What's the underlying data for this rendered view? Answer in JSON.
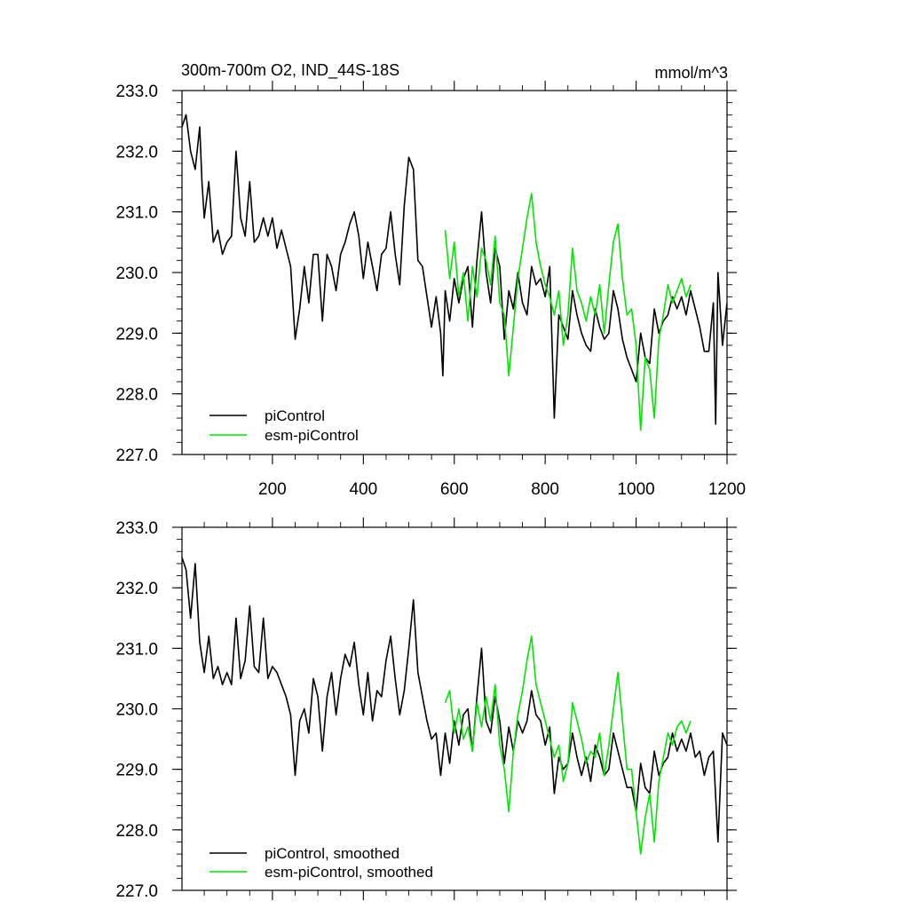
{
  "figure": {
    "title": "300m-700m O2, IND_44S-18S",
    "units": "mmol/m^3"
  },
  "chart_data": [
    {
      "type": "line",
      "panel": "top",
      "title": "300m-700m O2, IND_44S-18S",
      "units_label": "mmol/m^3",
      "xlim": [
        1,
        1200
      ],
      "ylim": [
        227.0,
        233.0
      ],
      "x_ticks": [
        200,
        400,
        600,
        800,
        1000,
        1200
      ],
      "x_tick_labels": [
        "200",
        "400",
        "600",
        "800",
        "1000",
        "1200"
      ],
      "y_ticks": [
        227.0,
        228.0,
        229.0,
        230.0,
        231.0,
        232.0,
        233.0
      ],
      "y_tick_labels": [
        "227.0",
        "228.0",
        "229.0",
        "230.0",
        "231.0",
        "232.0",
        "233.0"
      ],
      "legend": [
        "piControl",
        "esm-piControl"
      ],
      "legend_position": "bottom-left",
      "series": [
        {
          "name": "piControl",
          "color": "#000000",
          "x": [
            1,
            10,
            20,
            30,
            40,
            45,
            50,
            60,
            70,
            80,
            90,
            100,
            110,
            120,
            130,
            140,
            150,
            160,
            170,
            180,
            190,
            200,
            210,
            220,
            230,
            240,
            250,
            260,
            270,
            280,
            290,
            300,
            310,
            320,
            330,
            340,
            350,
            360,
            370,
            380,
            390,
            400,
            410,
            420,
            430,
            440,
            450,
            460,
            470,
            480,
            490,
            500,
            510,
            520,
            530,
            540,
            550,
            560,
            570,
            575,
            580,
            590,
            600,
            610,
            620,
            630,
            640,
            650,
            660,
            670,
            680,
            690,
            700,
            710,
            720,
            730,
            740,
            750,
            760,
            770,
            780,
            790,
            800,
            810,
            820,
            830,
            840,
            850,
            860,
            870,
            880,
            890,
            900,
            910,
            920,
            930,
            940,
            950,
            960,
            970,
            980,
            990,
            1000,
            1010,
            1020,
            1030,
            1040,
            1050,
            1060,
            1070,
            1080,
            1090,
            1100,
            1110,
            1120,
            1130,
            1140,
            1150,
            1160,
            1170,
            1175,
            1180,
            1190,
            1200
          ],
          "values": [
            232.4,
            232.6,
            232.0,
            231.7,
            232.4,
            231.5,
            230.9,
            231.5,
            230.5,
            230.7,
            230.3,
            230.5,
            230.6,
            232.0,
            230.9,
            230.6,
            231.5,
            230.5,
            230.6,
            230.9,
            230.6,
            230.9,
            230.4,
            230.7,
            230.4,
            230.1,
            228.9,
            229.4,
            230.1,
            229.5,
            230.3,
            230.3,
            229.2,
            230.3,
            230.1,
            229.7,
            230.3,
            230.5,
            230.8,
            231.0,
            230.6,
            229.9,
            230.5,
            230.1,
            229.7,
            230.3,
            230.4,
            231.0,
            230.3,
            229.8,
            231.1,
            231.9,
            231.7,
            230.2,
            230.1,
            229.6,
            229.1,
            229.6,
            229.0,
            228.3,
            229.7,
            229.2,
            229.9,
            229.5,
            229.9,
            230.1,
            229.1,
            230.2,
            231.0,
            230.0,
            229.5,
            230.4,
            230.1,
            228.9,
            229.7,
            229.4,
            230.0,
            229.5,
            229.3,
            230.1,
            229.8,
            229.9,
            229.6,
            230.1,
            227.6,
            229.3,
            229.1,
            228.9,
            229.7,
            229.3,
            229.0,
            228.8,
            228.7,
            229.4,
            229.1,
            228.9,
            229.0,
            229.7,
            229.4,
            228.9,
            228.6,
            228.4,
            228.2,
            229.0,
            228.6,
            228.5,
            229.4,
            229.0,
            229.2,
            229.3,
            229.6,
            229.4,
            229.6,
            229.3,
            229.7,
            229.4,
            229.1,
            228.7,
            228.7,
            229.5,
            227.5,
            230.0,
            228.8,
            229.5
          ]
        },
        {
          "name": "esm-piControl",
          "color": "#00e600",
          "x": [
            580,
            590,
            600,
            610,
            620,
            630,
            640,
            650,
            660,
            670,
            680,
            690,
            700,
            710,
            720,
            730,
            740,
            750,
            760,
            770,
            780,
            790,
            800,
            810,
            820,
            830,
            840,
            850,
            860,
            870,
            880,
            890,
            900,
            910,
            920,
            930,
            940,
            950,
            960,
            970,
            980,
            990,
            1000,
            1010,
            1020,
            1030,
            1040,
            1050,
            1060,
            1070,
            1080,
            1090,
            1100,
            1110,
            1120
          ],
          "values": [
            230.7,
            229.9,
            230.5,
            229.6,
            230.0,
            229.2,
            230.1,
            229.6,
            230.4,
            230.2,
            229.8,
            230.6,
            229.5,
            229.3,
            228.3,
            229.1,
            229.9,
            230.4,
            230.9,
            231.3,
            230.5,
            230.1,
            229.8,
            229.6,
            229.3,
            229.7,
            228.8,
            229.3,
            230.4,
            229.7,
            229.5,
            229.2,
            229.6,
            229.3,
            229.8,
            229.0,
            229.8,
            230.5,
            230.8,
            229.9,
            229.3,
            229.4,
            228.8,
            227.4,
            228.6,
            228.4,
            227.6,
            228.9,
            229.3,
            229.8,
            229.5,
            229.7,
            229.9,
            229.6,
            229.8
          ]
        }
      ]
    },
    {
      "type": "line",
      "panel": "bottom",
      "xlim": [
        1,
        1200
      ],
      "ylim": [
        227.0,
        233.0
      ],
      "y_ticks": [
        227.0,
        228.0,
        229.0,
        230.0,
        231.0,
        232.0,
        233.0
      ],
      "y_tick_labels": [
        "227.0",
        "228.0",
        "229.0",
        "230.0",
        "231.0",
        "232.0",
        "233.0"
      ],
      "legend": [
        "piControl, smoothed",
        "esm-piControl, smoothed"
      ],
      "legend_position": "bottom-left",
      "series": [
        {
          "name": "piControl, smoothed",
          "color": "#000000",
          "x": [
            1,
            10,
            20,
            30,
            40,
            50,
            60,
            70,
            80,
            90,
            100,
            110,
            120,
            130,
            140,
            150,
            160,
            170,
            180,
            190,
            200,
            210,
            220,
            230,
            240,
            250,
            260,
            270,
            280,
            290,
            300,
            310,
            320,
            330,
            340,
            350,
            360,
            370,
            380,
            390,
            400,
            410,
            420,
            430,
            440,
            450,
            460,
            470,
            480,
            490,
            500,
            510,
            520,
            530,
            540,
            550,
            560,
            570,
            580,
            590,
            600,
            610,
            620,
            630,
            640,
            650,
            660,
            670,
            680,
            690,
            700,
            710,
            720,
            730,
            740,
            750,
            760,
            770,
            780,
            790,
            800,
            810,
            820,
            830,
            840,
            850,
            860,
            870,
            880,
            890,
            900,
            910,
            920,
            930,
            940,
            950,
            960,
            970,
            980,
            990,
            1000,
            1010,
            1020,
            1030,
            1040,
            1050,
            1060,
            1070,
            1080,
            1090,
            1100,
            1110,
            1120,
            1130,
            1140,
            1150,
            1160,
            1170,
            1180,
            1190,
            1200
          ],
          "values": [
            232.5,
            232.3,
            231.5,
            232.4,
            231.1,
            230.6,
            231.2,
            230.5,
            230.7,
            230.4,
            230.6,
            230.4,
            231.5,
            230.5,
            230.8,
            231.7,
            230.7,
            230.6,
            231.5,
            230.5,
            230.7,
            230.6,
            230.4,
            230.2,
            229.9,
            228.9,
            229.8,
            230.0,
            229.6,
            230.5,
            230.2,
            229.3,
            230.2,
            230.6,
            229.9,
            230.5,
            230.9,
            230.7,
            231.1,
            230.4,
            229.9,
            230.6,
            229.8,
            230.3,
            230.2,
            230.8,
            231.2,
            230.5,
            229.9,
            230.3,
            231.0,
            231.8,
            230.6,
            230.2,
            229.8,
            229.5,
            229.6,
            228.9,
            229.6,
            229.1,
            229.8,
            229.4,
            229.9,
            230.0,
            229.3,
            230.2,
            231.0,
            229.8,
            229.6,
            230.2,
            229.8,
            229.1,
            229.7,
            229.3,
            229.8,
            229.6,
            229.8,
            230.3,
            229.9,
            229.8,
            229.4,
            229.7,
            228.6,
            229.2,
            229.0,
            229.1,
            229.6,
            229.2,
            228.9,
            229.2,
            228.8,
            229.4,
            229.2,
            228.9,
            229.0,
            229.6,
            229.3,
            229.0,
            228.7,
            228.7,
            228.3,
            229.1,
            228.7,
            228.6,
            229.3,
            228.9,
            229.1,
            229.2,
            229.6,
            229.3,
            229.5,
            229.3,
            229.6,
            229.2,
            229.3,
            228.9,
            229.2,
            229.3,
            227.8,
            229.6,
            229.4
          ]
        },
        {
          "name": "esm-piControl, smoothed",
          "color": "#00e600",
          "x": [
            580,
            590,
            600,
            610,
            620,
            630,
            640,
            650,
            660,
            670,
            680,
            690,
            700,
            710,
            720,
            730,
            740,
            750,
            760,
            770,
            780,
            790,
            800,
            810,
            820,
            830,
            840,
            850,
            860,
            870,
            880,
            890,
            900,
            910,
            920,
            930,
            940,
            950,
            960,
            970,
            980,
            990,
            1000,
            1010,
            1020,
            1030,
            1040,
            1050,
            1060,
            1070,
            1080,
            1090,
            1100,
            1110,
            1120
          ],
          "values": [
            230.1,
            230.3,
            229.6,
            230.0,
            229.5,
            229.7,
            229.3,
            230.1,
            229.7,
            230.2,
            229.8,
            230.4,
            229.4,
            229.0,
            228.3,
            229.3,
            229.9,
            230.3,
            230.8,
            231.2,
            230.4,
            230.1,
            229.8,
            229.5,
            229.2,
            229.4,
            228.8,
            229.1,
            230.1,
            229.8,
            229.5,
            229.1,
            229.3,
            229.2,
            229.6,
            228.9,
            229.4,
            230.0,
            230.6,
            229.8,
            229.0,
            229.0,
            228.3,
            227.6,
            228.2,
            228.6,
            227.8,
            228.8,
            229.2,
            229.6,
            229.4,
            229.7,
            229.8,
            229.6,
            229.8
          ]
        }
      ]
    }
  ]
}
